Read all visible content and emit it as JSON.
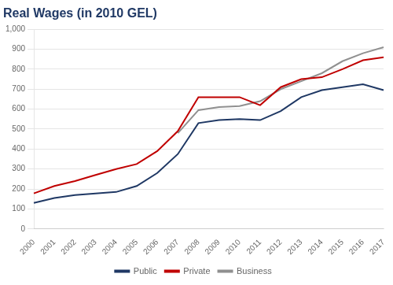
{
  "chart_data": {
    "type": "line",
    "title": "Real Wages (in 2010 GEL)",
    "categories": [
      "2000",
      "2001",
      "2002",
      "2003",
      "2004",
      "2005",
      "2006",
      "2007",
      "2008",
      "2009",
      "2010",
      "2011",
      "2012",
      "2013",
      "2014",
      "2015",
      "2016",
      "2017"
    ],
    "series": [
      {
        "name": "Public",
        "color": "#1F3864",
        "values": [
          130,
          155,
          170,
          178,
          185,
          215,
          280,
          375,
          530,
          545,
          550,
          545,
          590,
          660,
          695,
          710,
          725,
          695
        ]
      },
      {
        "name": "Private",
        "color": "#C00000",
        "values": [
          178,
          215,
          240,
          270,
          300,
          325,
          390,
          490,
          660,
          660,
          660,
          620,
          710,
          750,
          760,
          800,
          845,
          860
        ]
      },
      {
        "name": "Business",
        "color": "#909090",
        "values": [
          null,
          null,
          null,
          null,
          null,
          null,
          null,
          480,
          595,
          610,
          615,
          640,
          700,
          740,
          780,
          840,
          880,
          910
        ]
      }
    ],
    "ylim": [
      0,
      1000
    ],
    "yticks": [
      0,
      100,
      200,
      300,
      400,
      500,
      600,
      700,
      800,
      900,
      {
        "value": 1000,
        "label": "1,000"
      }
    ],
    "grid": true,
    "legend": "bottom"
  }
}
